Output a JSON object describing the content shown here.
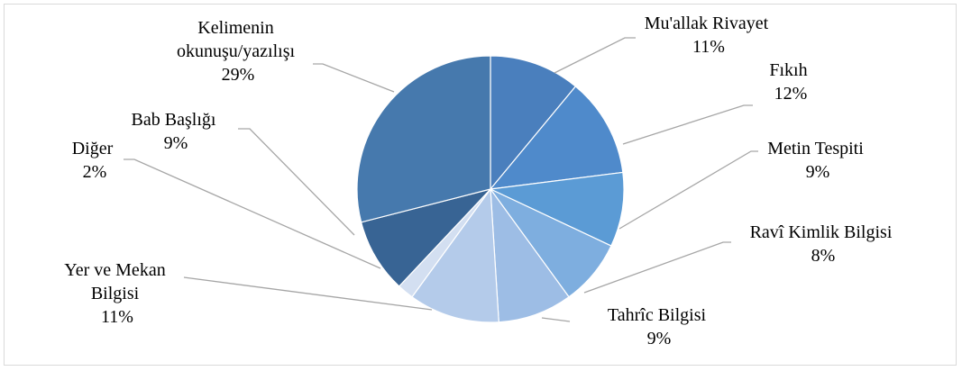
{
  "chart_data": {
    "type": "pie",
    "slices": [
      {
        "name": "Mu'allak Rivayet",
        "value": 11,
        "label": "11%",
        "color": "#4a7fbd"
      },
      {
        "name": "Fıkıh",
        "value": 12,
        "label": "12%",
        "color": "#4f8acb"
      },
      {
        "name": "Metin Tespiti",
        "value": 9,
        "label": "9%",
        "color": "#5b9bd5"
      },
      {
        "name": "Ravî Kimlik Bilgisi",
        "value": 8,
        "label": "8%",
        "color": "#7eaedf"
      },
      {
        "name": "Tahrîc Bilgisi",
        "value": 9,
        "label": "9%",
        "color": "#9dbde5"
      },
      {
        "name": "Yer ve Mekan Bilgisi",
        "value": 11,
        "label": "11%",
        "color": "#b4cbea"
      },
      {
        "name": "Diğer",
        "value": 2,
        "label": "2%",
        "color": "#d3dff1"
      },
      {
        "name": "Bab Başlığı",
        "value": 9,
        "label": "9%",
        "color": "#386494"
      },
      {
        "name": "Kelimenin okunuşu/yazılışı",
        "value": 29,
        "label": "29%",
        "color": "#4679ad"
      }
    ]
  },
  "labels": {
    "muallak": {
      "lines": [
        "Mu'allak Rivayet"
      ],
      "pct": "11%"
    },
    "fikih": {
      "lines": [
        "Fıkıh"
      ],
      "pct": "12%"
    },
    "metin": {
      "lines": [
        "Metin Tespiti"
      ],
      "pct": "9%"
    },
    "ravi": {
      "lines": [
        "Ravî Kimlik Bilgisi"
      ],
      "pct": "8%"
    },
    "tahric": {
      "lines": [
        "Tahrîc Bilgisi"
      ],
      "pct": "9%"
    },
    "yer": {
      "lines": [
        "Yer ve Mekan",
        "Bilgisi"
      ],
      "pct": "11%"
    },
    "diger": {
      "lines": [
        "Diğer"
      ],
      "pct": "2%"
    },
    "bab": {
      "lines": [
        "Bab Başlığı"
      ],
      "pct": "9%"
    },
    "kelime": {
      "lines": [
        "Kelimenin",
        "okunuşu/yazılışı"
      ],
      "pct": "29%"
    }
  }
}
